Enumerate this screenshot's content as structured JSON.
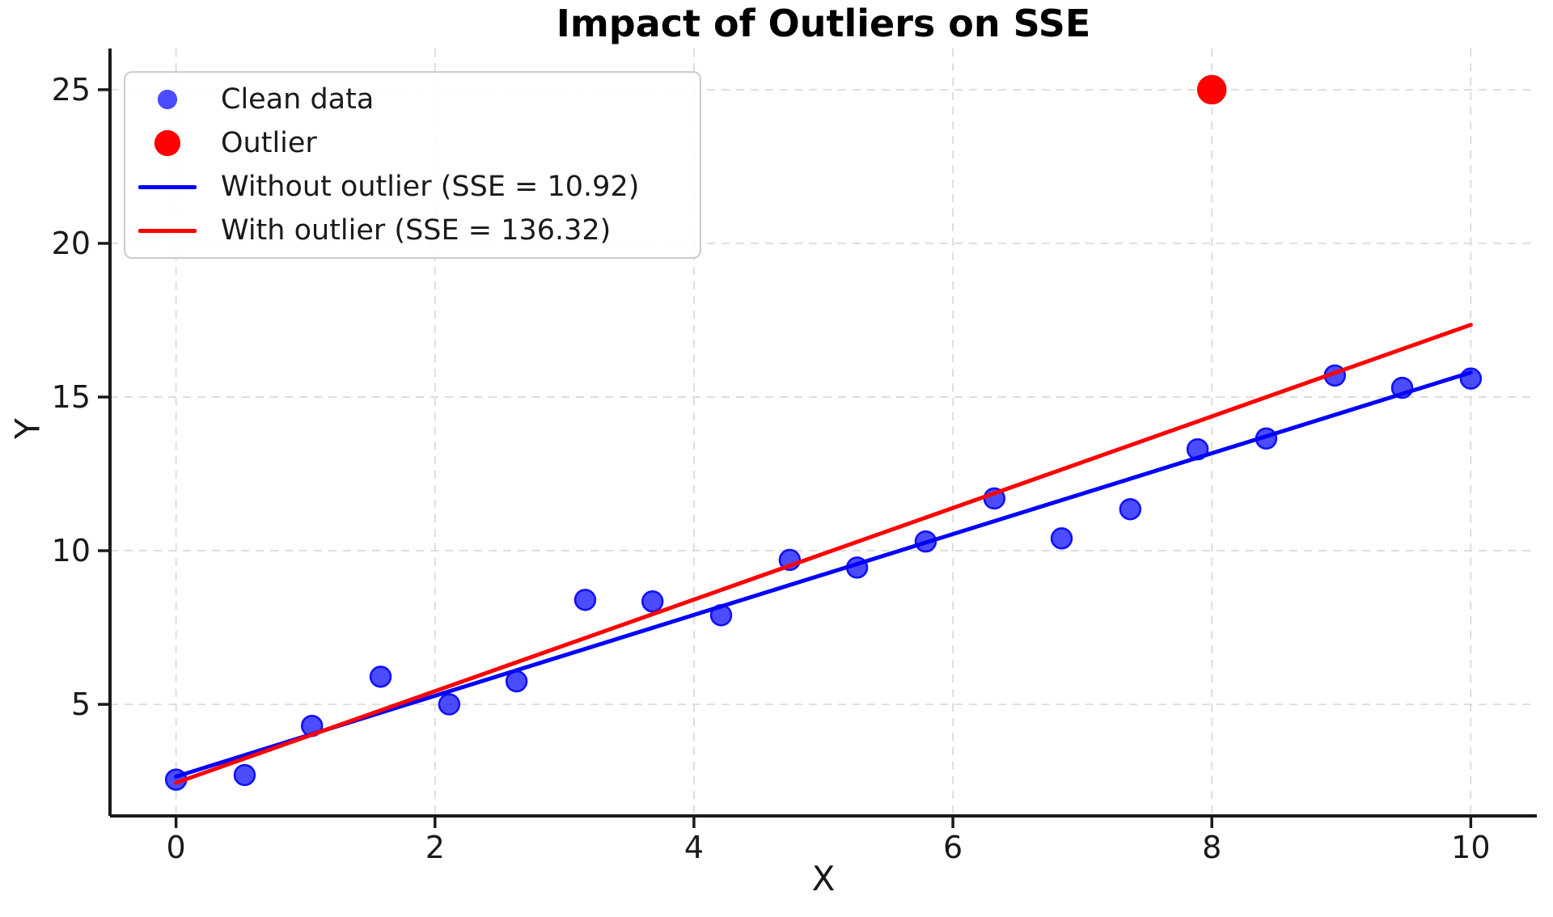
{
  "figure": {
    "background": "#ffffff",
    "grid_color": "#d9d9d9",
    "spine_color": "#1a1a1a",
    "text_color": "#1a1a1a"
  },
  "chart_data": {
    "type": "scatter",
    "title": "Impact of Outliers on SSE",
    "xlabel": "X",
    "ylabel": "Y",
    "xlim": [
      -0.51,
      10.51
    ],
    "ylim": [
      1.37,
      26.34
    ],
    "x_ticks": [
      0,
      2,
      4,
      6,
      8,
      10
    ],
    "y_ticks": [
      5,
      10,
      15,
      20,
      25
    ],
    "grid": true,
    "legend_position": "upper left",
    "series": [
      {
        "name": "Clean data",
        "kind": "scatter",
        "color": "#0000ff",
        "alpha": 0.7,
        "marker_radius": 12.5,
        "x": [
          0.0,
          0.53,
          1.05,
          1.58,
          2.11,
          2.63,
          3.16,
          3.68,
          4.21,
          4.74,
          5.26,
          5.79,
          6.32,
          6.84,
          7.37,
          7.89,
          8.42,
          8.95,
          9.47,
          10.0
        ],
        "y": [
          2.55,
          2.7,
          4.3,
          5.9,
          5.0,
          5.75,
          8.4,
          8.35,
          7.9,
          9.7,
          9.45,
          10.3,
          11.7,
          10.4,
          11.35,
          13.3,
          13.65,
          15.7,
          15.3,
          15.6
        ]
      },
      {
        "name": "Outlier",
        "kind": "scatter",
        "color": "#ff0000",
        "alpha": 1.0,
        "marker_radius": 17,
        "x": [
          8.0
        ],
        "y": [
          25.0
        ]
      },
      {
        "name": "Without outlier (SSE = 10.92)",
        "kind": "line",
        "color": "#0000ff",
        "line_width": 5,
        "x": [
          0.0,
          10.0
        ],
        "y": [
          2.65,
          15.8
        ]
      },
      {
        "name": "With outlier (SSE = 136.32)",
        "kind": "line",
        "color": "#ff0000",
        "line_width": 5,
        "x": [
          0.0,
          10.0
        ],
        "y": [
          2.45,
          17.35
        ]
      }
    ],
    "sse_without_outlier": 10.92,
    "sse_with_outlier": 136.32
  }
}
